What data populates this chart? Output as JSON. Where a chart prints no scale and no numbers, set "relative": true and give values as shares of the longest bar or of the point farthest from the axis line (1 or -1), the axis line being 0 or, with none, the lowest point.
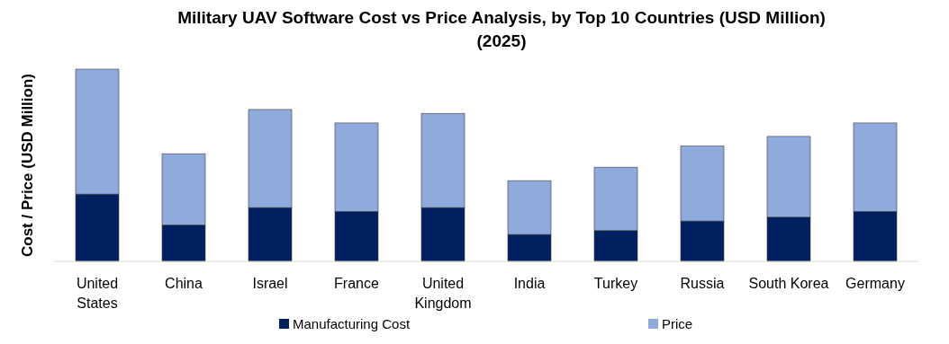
{
  "chart_data": {
    "type": "bar",
    "title": "Military UAV Software Cost vs Price Analysis, by Top 10 Countries (USD Million) (2025)",
    "ylabel": "Cost / Price (USD Million)",
    "relative": true,
    "stacked": true,
    "legend": "bottom",
    "categories": [
      "United States",
      "China",
      "Israel",
      "France",
      "United Kingdom",
      "India",
      "Turkey",
      "Russia",
      "South Korea",
      "Germany"
    ],
    "series": [
      {
        "name": "Manufacturing Cost",
        "color": "#002060",
        "values": [
          0.35,
          0.19,
          0.28,
          0.26,
          0.28,
          0.14,
          0.16,
          0.21,
          0.23,
          0.26
        ]
      },
      {
        "name": "Price",
        "color": "#8faadc",
        "values": [
          0.65,
          0.37,
          0.51,
          0.46,
          0.49,
          0.28,
          0.33,
          0.39,
          0.42,
          0.46
        ]
      }
    ]
  }
}
